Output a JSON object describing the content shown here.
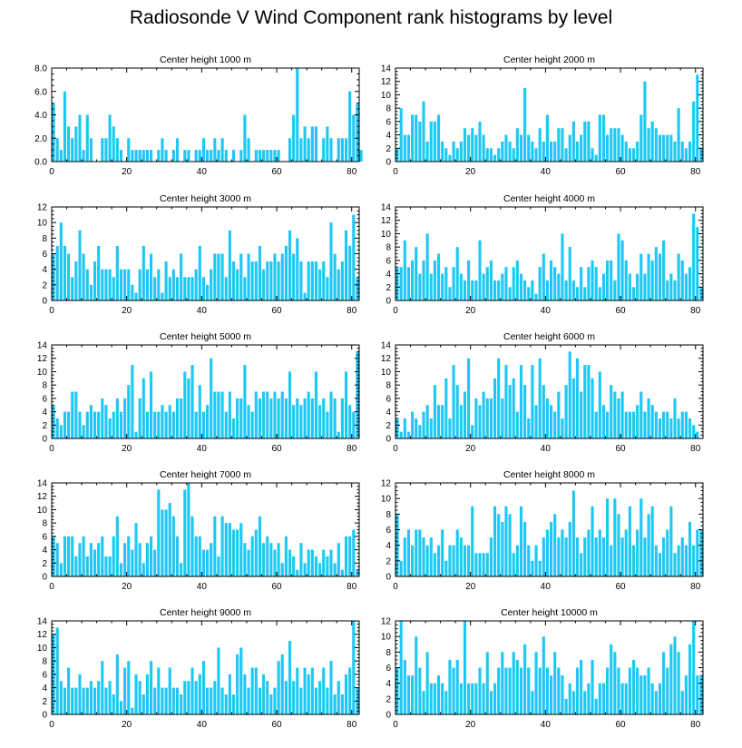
{
  "title": "Radiosonde V Wind Component rank histograms by level",
  "colors": {
    "bar": "#1ec8f5",
    "axis": "#000000",
    "background": "#ffffff"
  },
  "chart_data": [
    {
      "type": "bar",
      "title": "Center height 1000 m",
      "xlim": [
        0,
        82
      ],
      "ylim": [
        0,
        8
      ],
      "xticks": [
        0,
        20,
        40,
        60,
        80
      ],
      "xtick_labels": [
        "0",
        "20",
        "40",
        "60",
        "80"
      ],
      "yticks": [
        0,
        2,
        4,
        6,
        8
      ],
      "ytick_labels": [
        "0.0",
        "2.0",
        "4.0",
        "6.0",
        "8.0"
      ],
      "values": [
        5,
        2,
        1,
        6,
        3,
        2,
        3,
        4,
        1,
        4,
        2,
        0,
        0,
        2,
        2,
        4,
        3,
        2,
        1,
        0,
        2,
        1,
        1,
        1,
        1,
        1,
        1,
        0,
        1,
        2,
        1,
        0,
        1,
        2,
        0,
        1,
        1,
        0,
        1,
        1,
        2,
        1,
        1,
        2,
        1,
        2,
        1,
        0,
        1,
        0,
        1,
        4,
        2,
        0,
        1,
        1,
        1,
        1,
        1,
        1,
        1,
        0,
        0,
        2,
        4,
        8,
        2,
        3,
        2,
        3,
        3,
        0,
        2,
        3,
        2,
        0,
        2,
        2,
        2,
        6,
        4,
        5,
        1
      ]
    },
    {
      "type": "bar",
      "title": "Center height 2000 m",
      "xlim": [
        0,
        82
      ],
      "ylim": [
        0,
        14
      ],
      "xticks": [
        0,
        20,
        40,
        60,
        80
      ],
      "xtick_labels": [
        "0",
        "20",
        "40",
        "60",
        "80"
      ],
      "yticks": [
        0,
        2,
        4,
        6,
        8,
        10,
        12,
        14
      ],
      "ytick_labels": [
        "0",
        "2",
        "4",
        "6",
        "8",
        "10",
        "12",
        "14"
      ],
      "values": [
        2,
        8,
        4,
        4,
        7,
        7,
        6,
        9,
        3,
        6,
        6,
        7,
        3,
        2,
        1,
        3,
        2,
        3,
        5,
        4,
        5,
        4,
        6,
        4,
        2,
        2,
        1,
        2,
        3,
        4,
        3,
        2,
        5,
        4,
        11,
        4,
        3,
        2,
        5,
        3,
        7,
        3,
        3,
        5,
        5,
        2,
        4,
        6,
        3,
        4,
        6,
        6,
        2,
        1,
        7,
        7,
        4,
        5,
        5,
        5,
        4,
        3,
        2,
        2,
        3,
        7,
        12,
        5,
        6,
        5,
        4,
        4,
        4,
        4,
        3,
        8,
        3,
        2,
        3,
        9,
        13,
        2
      ]
    },
    {
      "type": "bar",
      "title": "Center height 3000 m",
      "xlim": [
        0,
        82
      ],
      "ylim": [
        0,
        12
      ],
      "xticks": [
        0,
        20,
        40,
        60,
        80
      ],
      "xtick_labels": [
        "0",
        "20",
        "40",
        "60",
        "80"
      ],
      "yticks": [
        0,
        2,
        4,
        6,
        8,
        10,
        12
      ],
      "ytick_labels": [
        "0",
        "2",
        "4",
        "6",
        "8",
        "10",
        "12"
      ],
      "values": [
        6,
        7,
        10,
        7,
        6,
        3,
        5,
        9,
        6,
        4,
        2,
        5,
        7,
        4,
        4,
        4,
        3,
        7,
        4,
        4,
        4,
        2,
        1,
        4,
        7,
        4,
        6,
        3,
        4,
        1,
        5,
        3,
        4,
        3,
        6,
        3,
        3,
        3,
        4,
        7,
        3,
        2,
        4,
        6,
        6,
        6,
        3,
        9,
        5,
        4,
        6,
        3,
        6,
        5,
        5,
        7,
        4,
        5,
        5,
        6,
        5,
        6,
        7,
        9,
        6,
        8,
        5,
        1,
        5,
        5,
        5,
        4,
        5,
        3,
        10,
        6,
        4,
        5,
        9,
        7,
        11,
        3
      ]
    },
    {
      "type": "bar",
      "title": "Center height 4000 m",
      "xlim": [
        0,
        82
      ],
      "ylim": [
        0,
        14
      ],
      "xticks": [
        0,
        20,
        40,
        60,
        80
      ],
      "xtick_labels": [
        "0",
        "20",
        "40",
        "60",
        "80"
      ],
      "yticks": [
        0,
        2,
        4,
        6,
        8,
        10,
        12,
        14
      ],
      "ytick_labels": [
        "0",
        "2",
        "4",
        "6",
        "8",
        "10",
        "12",
        "14"
      ],
      "values": [
        5,
        5,
        9,
        5,
        6,
        8,
        4,
        6,
        10,
        4,
        6,
        7,
        4,
        5,
        2,
        5,
        8,
        4,
        3,
        6,
        3,
        3,
        9,
        4,
        5,
        6,
        3,
        3,
        4,
        5,
        2,
        5,
        6,
        4,
        3,
        2,
        3,
        1,
        5,
        7,
        3,
        6,
        5,
        4,
        10,
        3,
        8,
        3,
        2,
        5,
        2,
        5,
        6,
        5,
        2,
        4,
        6,
        6,
        3,
        10,
        9,
        6,
        4,
        2,
        4,
        7,
        4,
        7,
        6,
        8,
        7,
        9,
        3,
        4,
        3,
        7,
        6,
        4,
        5,
        13,
        11,
        2
      ]
    },
    {
      "type": "bar",
      "title": "Center height 5000 m",
      "xlim": [
        0,
        82
      ],
      "ylim": [
        0,
        14
      ],
      "xticks": [
        0,
        20,
        40,
        60,
        80
      ],
      "xtick_labels": [
        "0",
        "20",
        "40",
        "60",
        "80"
      ],
      "yticks": [
        0,
        2,
        4,
        6,
        8,
        10,
        12,
        14
      ],
      "ytick_labels": [
        "0",
        "2",
        "4",
        "6",
        "8",
        "10",
        "12",
        "14"
      ],
      "values": [
        5,
        3,
        2,
        4,
        4,
        7,
        7,
        4,
        2,
        4,
        5,
        4,
        4,
        6,
        5,
        3,
        4,
        6,
        4,
        6,
        8,
        11,
        1,
        6,
        9,
        4,
        10,
        4,
        4,
        5,
        4,
        5,
        4,
        6,
        6,
        10,
        9,
        11,
        4,
        8,
        4,
        5,
        12,
        7,
        7,
        7,
        4,
        7,
        3,
        6,
        6,
        11,
        5,
        4,
        7,
        6,
        7,
        7,
        6,
        7,
        6,
        7,
        6,
        10,
        5,
        6,
        5,
        6,
        7,
        6,
        10,
        5,
        6,
        4,
        7,
        6,
        1,
        6,
        10,
        5,
        4,
        13
      ]
    },
    {
      "type": "bar",
      "title": "Center height 6000 m",
      "xlim": [
        0,
        82
      ],
      "ylim": [
        0,
        14
      ],
      "xticks": [
        0,
        20,
        40,
        60,
        80
      ],
      "xtick_labels": [
        "0",
        "20",
        "40",
        "60",
        "80"
      ],
      "yticks": [
        0,
        2,
        4,
        6,
        8,
        10,
        12,
        14
      ],
      "ytick_labels": [
        "0",
        "2",
        "4",
        "6",
        "8",
        "10",
        "12",
        "14"
      ],
      "values": [
        3,
        1,
        3,
        1,
        4,
        3,
        2,
        4,
        5,
        3,
        8,
        5,
        5,
        9,
        3,
        11,
        8,
        5,
        7,
        12,
        2,
        6,
        5,
        7,
        6,
        6,
        9,
        12,
        6,
        11,
        8,
        9,
        4,
        11,
        8,
        3,
        11,
        5,
        12,
        8,
        6,
        5,
        4,
        7,
        3,
        8,
        13,
        9,
        12,
        7,
        11,
        11,
        9,
        4,
        10,
        5,
        4,
        8,
        7,
        6,
        7,
        4,
        4,
        4,
        5,
        7,
        4,
        6,
        5,
        4,
        3,
        4,
        4,
        3,
        6,
        3,
        4,
        4,
        3,
        2,
        1,
        0
      ]
    },
    {
      "type": "bar",
      "title": "Center height 7000 m",
      "xlim": [
        0,
        82
      ],
      "ylim": [
        0,
        14
      ],
      "xticks": [
        0,
        20,
        40,
        60,
        80
      ],
      "xtick_labels": [
        "0",
        "20",
        "40",
        "60",
        "80"
      ],
      "yticks": [
        0,
        2,
        4,
        6,
        8,
        10,
        12,
        14
      ],
      "ytick_labels": [
        "0",
        "2",
        "4",
        "6",
        "8",
        "10",
        "12",
        "14"
      ],
      "values": [
        6,
        5,
        2,
        6,
        6,
        6,
        3,
        5,
        6,
        3,
        5,
        4,
        5,
        6,
        3,
        3,
        6,
        9,
        2,
        5,
        6,
        4,
        8,
        5,
        2,
        5,
        6,
        4,
        13,
        10,
        10,
        11,
        9,
        6,
        2,
        13,
        14,
        9,
        6,
        6,
        4,
        4,
        5,
        9,
        3,
        9,
        8,
        8,
        7,
        7,
        8,
        5,
        4,
        6,
        7,
        9,
        5,
        6,
        5,
        4,
        5,
        2,
        6,
        4,
        3,
        1,
        5,
        2,
        4,
        4,
        3,
        2,
        4,
        3,
        4,
        2,
        5,
        1,
        6,
        6,
        7,
        1
      ]
    },
    {
      "type": "bar",
      "title": "Center height 8000 m",
      "xlim": [
        0,
        82
      ],
      "ylim": [
        0,
        12
      ],
      "xticks": [
        0,
        20,
        40,
        60,
        80
      ],
      "xtick_labels": [
        "0",
        "20",
        "40",
        "60",
        "80"
      ],
      "yticks": [
        0,
        2,
        4,
        6,
        8,
        10,
        12
      ],
      "ytick_labels": [
        "0",
        "2",
        "4",
        "6",
        "8",
        "10",
        "12"
      ],
      "values": [
        8,
        2,
        5,
        6,
        4,
        6,
        6,
        5,
        4,
        5,
        3,
        4,
        6,
        2,
        4,
        4,
        6,
        5,
        4,
        4,
        9,
        3,
        3,
        3,
        3,
        5,
        9,
        8,
        7,
        9,
        8,
        3,
        4,
        9,
        7,
        4,
        2,
        4,
        2,
        5,
        6,
        7,
        8,
        5,
        6,
        5,
        7,
        11,
        5,
        3,
        5,
        6,
        9,
        5,
        6,
        5,
        10,
        4,
        10,
        8,
        5,
        6,
        9,
        4,
        6,
        10,
        5,
        8,
        9,
        4,
        3,
        5,
        6,
        9,
        3,
        4,
        5,
        4,
        7,
        4,
        6,
        6
      ]
    },
    {
      "type": "bar",
      "title": "Center height 9000 m",
      "xlim": [
        0,
        82
      ],
      "ylim": [
        0,
        14
      ],
      "xticks": [
        0,
        20,
        40,
        60,
        80
      ],
      "xtick_labels": [
        "0",
        "20",
        "40",
        "60",
        "80"
      ],
      "yticks": [
        0,
        2,
        4,
        6,
        8,
        10,
        12,
        14
      ],
      "ytick_labels": [
        "0",
        "2",
        "4",
        "6",
        "8",
        "10",
        "12",
        "14"
      ],
      "values": [
        12,
        13,
        5,
        4,
        7,
        4,
        4,
        6,
        4,
        4,
        5,
        4,
        5,
        8,
        4,
        5,
        3,
        9,
        2,
        7,
        8,
        1,
        6,
        5,
        3,
        6,
        8,
        4,
        7,
        4,
        4,
        7,
        4,
        4,
        3,
        5,
        5,
        7,
        5,
        6,
        8,
        4,
        4,
        5,
        10,
        4,
        3,
        6,
        3,
        9,
        10,
        6,
        4,
        7,
        7,
        4,
        6,
        5,
        3,
        4,
        8,
        9,
        5,
        11,
        5,
        7,
        4,
        7,
        6,
        7,
        4,
        5,
        7,
        4,
        8,
        3,
        5,
        3,
        6,
        7,
        14,
        4
      ]
    },
    {
      "type": "bar",
      "title": "Center height 10000 m",
      "xlim": [
        0,
        82
      ],
      "ylim": [
        0,
        12
      ],
      "xticks": [
        0,
        20,
        40,
        60,
        80
      ],
      "xtick_labels": [
        "0",
        "20",
        "40",
        "60",
        "80"
      ],
      "yticks": [
        0,
        2,
        4,
        6,
        8,
        10,
        12
      ],
      "ytick_labels": [
        "0",
        "2",
        "4",
        "6",
        "8",
        "10",
        "12"
      ],
      "values": [
        6,
        12,
        7,
        5,
        5,
        10,
        6,
        3,
        8,
        4,
        4,
        5,
        4,
        3,
        7,
        6,
        7,
        4,
        12,
        4,
        4,
        4,
        6,
        4,
        8,
        3,
        4,
        6,
        8,
        6,
        6,
        8,
        7,
        6,
        9,
        6,
        3,
        8,
        6,
        10,
        6,
        5,
        8,
        6,
        5,
        2,
        4,
        3,
        6,
        7,
        3,
        4,
        7,
        2,
        4,
        4,
        6,
        9,
        8,
        6,
        4,
        4,
        6,
        7,
        6,
        5,
        5,
        6,
        4,
        3,
        4,
        8,
        6,
        9,
        10,
        8,
        3,
        5,
        9,
        12,
        5,
        5
      ]
    }
  ]
}
